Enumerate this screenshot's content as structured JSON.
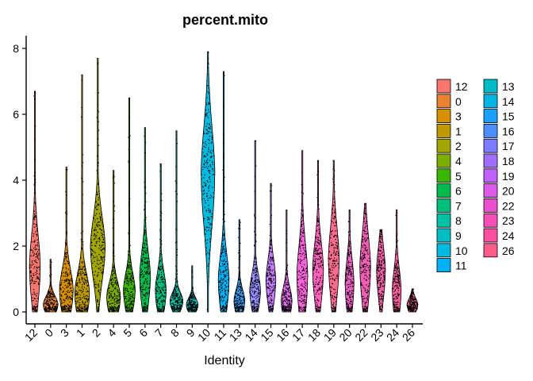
{
  "chart_data": {
    "type": "violin",
    "title": "percent.mito",
    "xlabel": "Identity",
    "ylabel": "",
    "ylim": [
      -0.3,
      8.4
    ],
    "yticks": [
      0,
      2,
      4,
      6,
      8
    ],
    "legend_position": "right",
    "legend_columns": 2,
    "categories": [
      "12",
      "0",
      "3",
      "1",
      "2",
      "4",
      "5",
      "6",
      "7",
      "8",
      "9",
      "10",
      "11",
      "13",
      "14",
      "15",
      "16",
      "17",
      "18",
      "19",
      "20",
      "22",
      "23",
      "24",
      "26"
    ],
    "series": [
      {
        "name": "12",
        "color": "#F8766D",
        "median": 1.3,
        "max": 6.7,
        "mode_width": 0.55,
        "core": [
          0.1,
          3.4
        ]
      },
      {
        "name": "0",
        "color": "#EA8331",
        "median": 0.2,
        "max": 1.6,
        "mode_width": 0.75,
        "core": [
          0.0,
          0.9
        ]
      },
      {
        "name": "3",
        "color": "#D89000",
        "median": 0.6,
        "max": 4.4,
        "mode_width": 0.7,
        "core": [
          0.0,
          2.2
        ]
      },
      {
        "name": "1",
        "color": "#C09B00",
        "median": 0.5,
        "max": 7.2,
        "mode_width": 0.75,
        "core": [
          0.0,
          2.1
        ]
      },
      {
        "name": "2",
        "color": "#A3A500",
        "median": 1.9,
        "max": 7.7,
        "mode_width": 0.75,
        "core": [
          0.2,
          3.3
        ]
      },
      {
        "name": "4",
        "color": "#7CAE00",
        "median": 0.4,
        "max": 4.3,
        "mode_width": 0.7,
        "core": [
          0.0,
          1.6
        ]
      },
      {
        "name": "5",
        "color": "#39B600",
        "median": 0.6,
        "max": 6.5,
        "mode_width": 0.6,
        "core": [
          0.1,
          1.9
        ]
      },
      {
        "name": "6",
        "color": "#00BB4E",
        "median": 1.0,
        "max": 5.6,
        "mode_width": 0.55,
        "core": [
          0.1,
          2.7
        ]
      },
      {
        "name": "7",
        "color": "#00BF7D",
        "median": 0.6,
        "max": 4.5,
        "mode_width": 0.55,
        "core": [
          0.0,
          1.9
        ]
      },
      {
        "name": "8",
        "color": "#00C1A3",
        "median": 0.3,
        "max": 5.5,
        "mode_width": 0.65,
        "core": [
          0.0,
          0.9
        ]
      },
      {
        "name": "9",
        "color": "#00BFC4",
        "median": 0.2,
        "max": 1.4,
        "mode_width": 0.6,
        "core": [
          0.0,
          0.7
        ]
      },
      {
        "name": "10",
        "color": "#00BAE0",
        "median": 4.1,
        "max": 7.9,
        "mode_width": 0.7,
        "core": [
          2.2,
          7.0
        ]
      },
      {
        "name": "11",
        "color": "#00B0F6",
        "median": 0.9,
        "max": 7.3,
        "mode_width": 0.55,
        "core": [
          0.1,
          2.7
        ]
      },
      {
        "name": "13",
        "color": "#35A2FF",
        "median": 0.3,
        "max": 2.8,
        "mode_width": 0.55,
        "core": [
          0.0,
          1.2
        ]
      },
      {
        "name": "14",
        "color": "#9590FF",
        "median": 0.6,
        "max": 5.2,
        "mode_width": 0.55,
        "core": [
          0.1,
          1.8
        ]
      },
      {
        "name": "15",
        "color": "#C77CFF",
        "median": 0.9,
        "max": 3.9,
        "mode_width": 0.5,
        "core": [
          0.1,
          2.2
        ]
      },
      {
        "name": "16",
        "color": "#E76BF3",
        "median": 0.3,
        "max": 3.1,
        "mode_width": 0.55,
        "core": [
          0.0,
          1.4
        ]
      },
      {
        "name": "17",
        "color": "#FA62DB",
        "median": 1.0,
        "max": 4.9,
        "mode_width": 0.55,
        "core": [
          0.1,
          3.4
        ]
      },
      {
        "name": "18",
        "color": "#FF62BC",
        "median": 1.2,
        "max": 4.6,
        "mode_width": 0.55,
        "core": [
          0.1,
          3.0
        ]
      },
      {
        "name": "19",
        "color": "#FF6C90",
        "median": 1.5,
        "max": 4.6,
        "mode_width": 0.55,
        "core": [
          0.1,
          3.5
        ]
      },
      {
        "name": "20",
        "color": "#EC5FC1",
        "median": 0.8,
        "max": 3.1,
        "mode_width": 0.45,
        "core": [
          0.1,
          2.6
        ]
      },
      {
        "name": "22",
        "color": "#F25FB5",
        "median": 1.3,
        "max": 3.3,
        "mode_width": 0.55,
        "core": [
          0.1,
          3.3
        ]
      },
      {
        "name": "23",
        "color": "#F85FA8",
        "median": 1.2,
        "max": 2.5,
        "mode_width": 0.45,
        "core": [
          0.1,
          2.5
        ]
      },
      {
        "name": "24",
        "color": "#FC5F9C",
        "median": 0.6,
        "max": 3.1,
        "mode_width": 0.45,
        "core": [
          0.0,
          2.2
        ]
      },
      {
        "name": "26",
        "color": "#FF6391",
        "median": 0.2,
        "max": 0.7,
        "mode_width": 0.55,
        "core": [
          0.0,
          0.7
        ]
      }
    ],
    "legend": [
      {
        "label": "12",
        "color": "#F8766D"
      },
      {
        "label": "0",
        "color": "#EA8331"
      },
      {
        "label": "3",
        "color": "#D89000"
      },
      {
        "label": "1",
        "color": "#C09B00"
      },
      {
        "label": "2",
        "color": "#A3A500"
      },
      {
        "label": "4",
        "color": "#7CAE00"
      },
      {
        "label": "5",
        "color": "#39B600"
      },
      {
        "label": "6",
        "color": "#00BB4E"
      },
      {
        "label": "7",
        "color": "#00BF7D"
      },
      {
        "label": "8",
        "color": "#00C1A3"
      },
      {
        "label": "9",
        "color": "#00BFC4"
      },
      {
        "label": "10",
        "color": "#00BAE0"
      },
      {
        "label": "11",
        "color": "#00B0F6"
      },
      {
        "label": "13",
        "color": "#00BCC8"
      },
      {
        "label": "14",
        "color": "#00B4E4"
      },
      {
        "label": "15",
        "color": "#1A9FFF"
      },
      {
        "label": "16",
        "color": "#4B8FFF"
      },
      {
        "label": "17",
        "color": "#7B7CFF"
      },
      {
        "label": "18",
        "color": "#A06EFF"
      },
      {
        "label": "19",
        "color": "#C25FFF"
      },
      {
        "label": "20",
        "color": "#D95BE8"
      },
      {
        "label": "22",
        "color": "#EA4FD0"
      },
      {
        "label": "23",
        "color": "#F64FB8"
      },
      {
        "label": "24",
        "color": "#FC4FA0"
      },
      {
        "label": "26",
        "color": "#FF5C8A"
      }
    ]
  }
}
